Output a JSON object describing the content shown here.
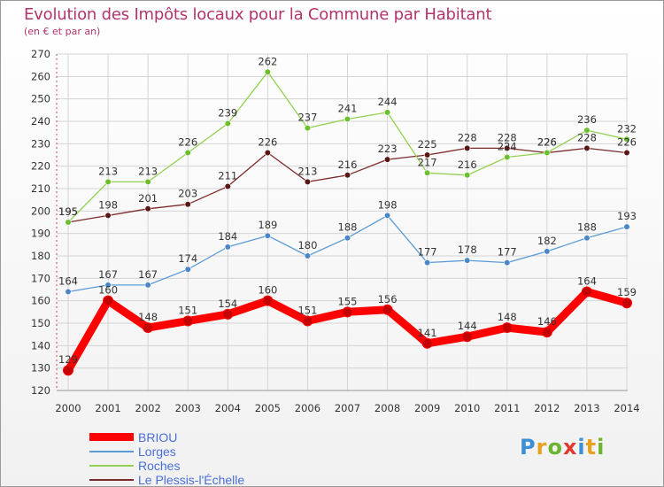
{
  "title": "Evolution des Impôts locaux pour la Commune par Habitant",
  "subtitle": "(en € et par an)",
  "logo": {
    "letters": [
      {
        "ch": "P",
        "color": "#3a8fd6"
      },
      {
        "ch": "r",
        "color": "#e6a21f"
      },
      {
        "ch": "o",
        "color": "#6ab42e"
      },
      {
        "ch": "x",
        "color": "#e03a2f"
      },
      {
        "ch": "i",
        "color": "#3a8fd6"
      },
      {
        "ch": "t",
        "color": "#e6a21f"
      },
      {
        "ch": "i",
        "color": "#6ab42e"
      }
    ]
  },
  "chart_data": {
    "type": "line",
    "title": "Evolution des Impôts locaux pour la Commune par Habitant",
    "subtitle": "(en € et par an)",
    "xlabel": "",
    "ylabel": "",
    "ylim": [
      120,
      270
    ],
    "yticks": [
      120,
      130,
      140,
      150,
      160,
      170,
      180,
      190,
      200,
      210,
      220,
      230,
      240,
      250,
      260,
      270
    ],
    "grid": true,
    "legend_position": "bottom-left",
    "categories": [
      "2000",
      "2001",
      "2002",
      "2003",
      "2004",
      "2005",
      "2006",
      "2007",
      "2008",
      "2009",
      "2010",
      "2011",
      "2012",
      "2013",
      "2014"
    ],
    "series": [
      {
        "name": "BRIOU",
        "color": "#ff0000",
        "marker_color": "#c40000",
        "thick": true,
        "values": [
          129,
          160,
          148,
          151,
          154,
          160,
          151,
          155,
          156,
          141,
          144,
          148,
          146,
          164,
          159
        ]
      },
      {
        "name": "Lorges",
        "color": "#5b9bd5",
        "marker_color": "#4a86c8",
        "thick": false,
        "values": [
          164,
          167,
          167,
          174,
          184,
          189,
          180,
          188,
          198,
          177,
          178,
          177,
          182,
          188,
          193
        ]
      },
      {
        "name": "Roches",
        "color": "#92d050",
        "marker_color": "#6bbf2a",
        "thick": false,
        "values": [
          195,
          213,
          213,
          226,
          239,
          262,
          237,
          241,
          244,
          217,
          216,
          224,
          226,
          236,
          232
        ]
      },
      {
        "name": "Le Plessis-l'Échelle",
        "color": "#7b2b2b",
        "marker_color": "#5a1515",
        "thick": false,
        "values": [
          195,
          198,
          201,
          203,
          211,
          226,
          213,
          216,
          223,
          225,
          228,
          228,
          226,
          228,
          226
        ]
      }
    ]
  }
}
